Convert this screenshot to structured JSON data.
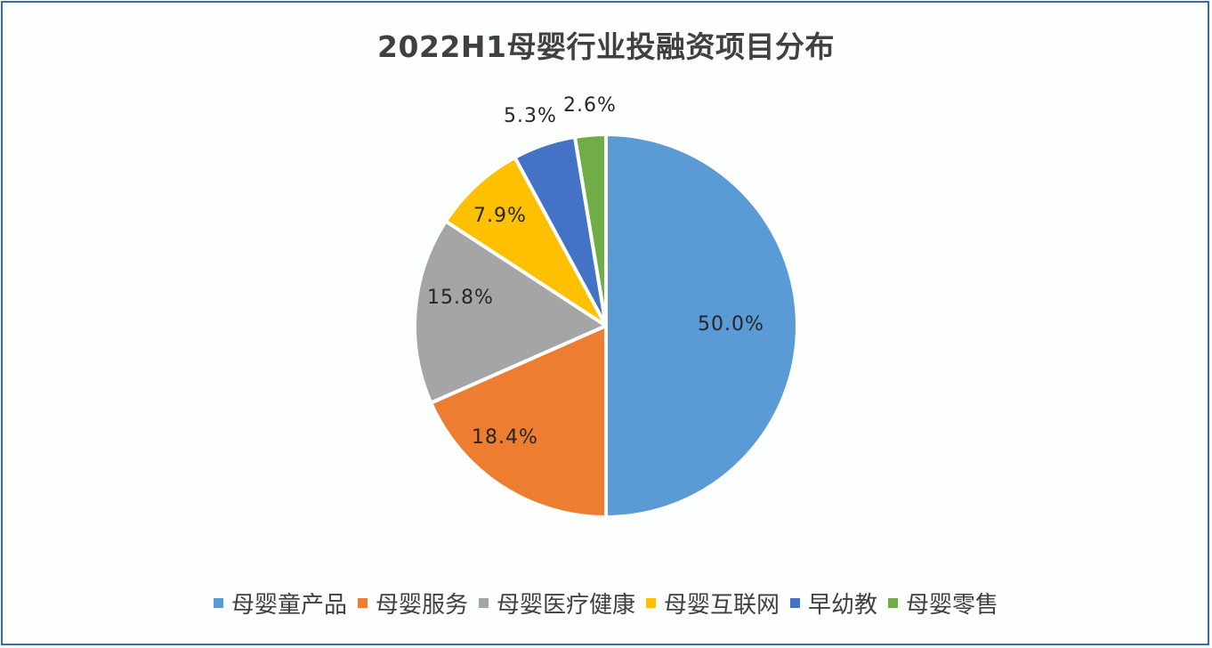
{
  "chart_data": {
    "type": "pie",
    "title": "2022H1母婴行业投融资项目分布",
    "categories": [
      "母婴童产品",
      "母婴服务",
      "母婴医疗健康",
      "母婴互联网",
      "早幼教",
      "母婴零售"
    ],
    "values": [
      50.0,
      18.4,
      15.8,
      7.9,
      5.3,
      2.6
    ],
    "value_labels": [
      "50.0%",
      "18.4%",
      "15.8%",
      "7.9%",
      "5.3%",
      "2.6%"
    ],
    "colors": [
      "#5b9bd5",
      "#ed7d31",
      "#a5a5a5",
      "#ffc000",
      "#4472c4",
      "#70ad47"
    ],
    "unit": "%",
    "start_angle": "12 o'clock, clockwise",
    "legend_position": "bottom"
  },
  "title": "2022H1母婴行业投融资项目分布",
  "labels": {
    "s0": "50.0%",
    "s1": "18.4%",
    "s2": "15.8%",
    "s3": "7.9%",
    "s4": "5.3%",
    "s5": "2.6%"
  },
  "legend": [
    {
      "label": "母婴童产品",
      "color": "#5b9bd5"
    },
    {
      "label": "母婴服务",
      "color": "#ed7d31"
    },
    {
      "label": "母婴医疗健康",
      "color": "#a5a5a5"
    },
    {
      "label": "母婴互联网",
      "color": "#ffc000"
    },
    {
      "label": "早幼教",
      "color": "#4472c4"
    },
    {
      "label": "母婴零售",
      "color": "#70ad47"
    }
  ]
}
